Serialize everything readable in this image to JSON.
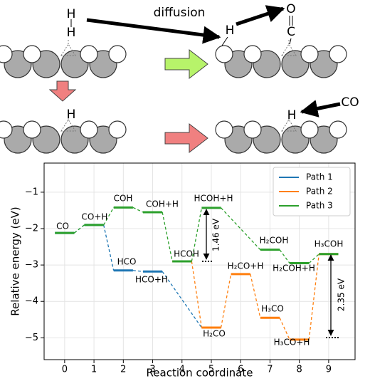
{
  "schematic": {
    "labels": [
      "diffusion",
      "H",
      "H",
      "H",
      "O",
      "C",
      "H",
      "H",
      "CO"
    ]
  },
  "chart_data": {
    "type": "energy-levels",
    "xlabel": "Reaction coordinate",
    "ylabel": "Relative energy (eV)",
    "categories": [
      0,
      1,
      2,
      3,
      4,
      5,
      6,
      7,
      8,
      9
    ],
    "xlim": [
      -0.7,
      9.9
    ],
    "ylim": [
      -5.6,
      -0.2
    ],
    "xticks": [
      0,
      1,
      2,
      3,
      4,
      5,
      6,
      7,
      8,
      9
    ],
    "yticks": [
      {
        "value": -1,
        "label": "−1"
      },
      {
        "value": -2,
        "label": "−2"
      },
      {
        "value": -3,
        "label": "−3"
      },
      {
        "value": -4,
        "label": "−4"
      },
      {
        "value": -5,
        "label": "−5"
      }
    ],
    "grid": true,
    "legend": "upper right",
    "series": [
      {
        "name": "Path 1",
        "color": "#1f77b4",
        "values": [
          -2.12,
          -1.9,
          -3.15,
          -3.18,
          null,
          -4.72,
          null,
          null,
          null,
          null
        ]
      },
      {
        "name": "Path 2",
        "color": "#ff7f0e",
        "values": [
          null,
          null,
          null,
          null,
          -2.9,
          -4.72,
          -3.25,
          -4.45,
          -5.05,
          -2.7
        ]
      },
      {
        "name": "Path 3",
        "color": "#2ca02c",
        "values": [
          -2.12,
          -1.9,
          -1.42,
          -1.55,
          -2.9,
          -1.43,
          null,
          -2.58,
          -2.95,
          -2.7
        ]
      }
    ],
    "annotations": [
      "CO",
      "CO+H",
      "COH",
      "COH+H",
      "HCO",
      "HCO+H",
      "HCOH",
      "HCOH+H",
      "H₂CO",
      "H₂CO+H",
      "H₃CO",
      "H₃CO+H",
      "H₂COH",
      "H₂COH+H",
      "H₃COH",
      "1.46 eV",
      "2.35 eV"
    ]
  }
}
